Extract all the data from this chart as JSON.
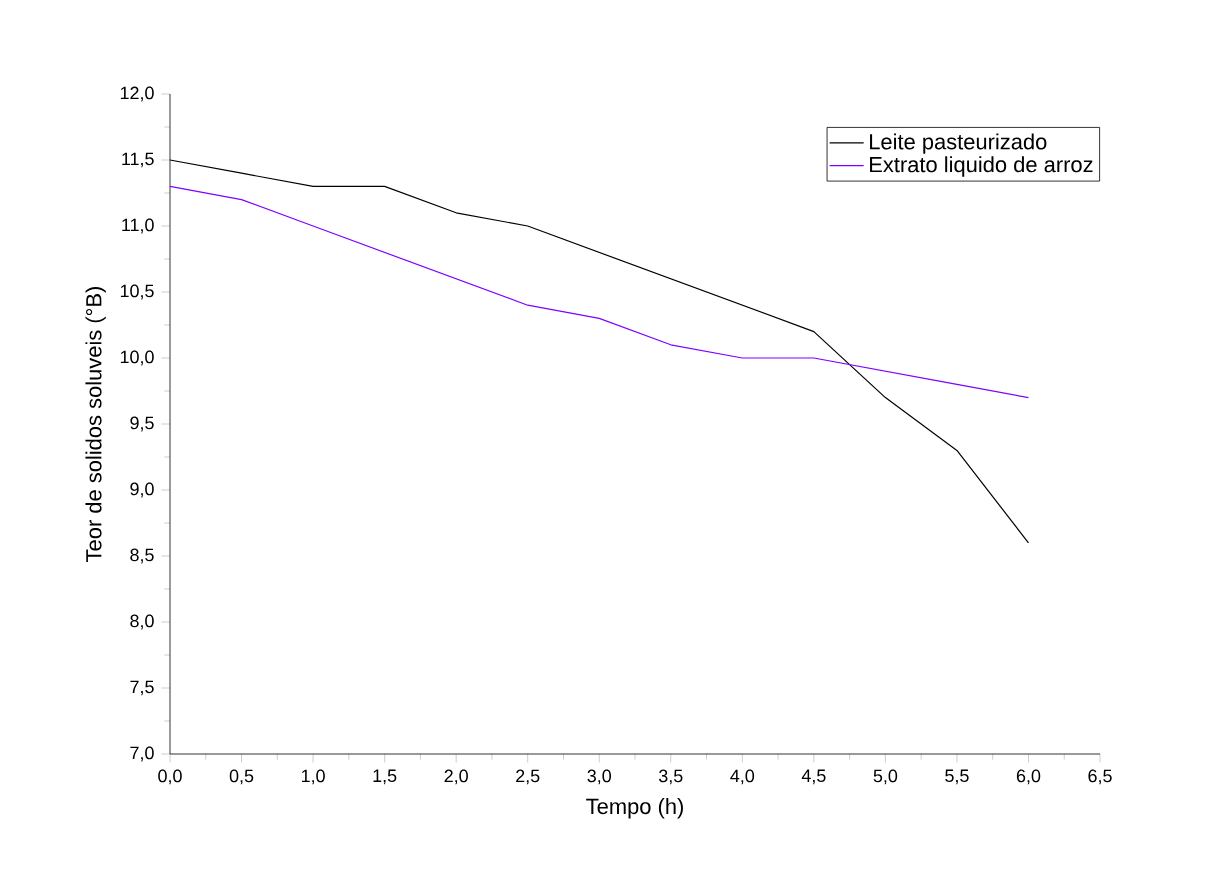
{
  "chart_data": {
    "type": "line",
    "xlabel": "Tempo (h)",
    "ylabel": "Teor de solidos soluveis (°B)",
    "x": [
      0,
      0.5,
      1,
      1.5,
      2,
      2.5,
      3,
      3.5,
      4,
      4.5,
      5,
      5.5,
      6
    ],
    "series": [
      {
        "name": "Leite pasteurizado",
        "color": "#000000",
        "values": [
          11.5,
          11.4,
          11.3,
          11.3,
          11.1,
          11.0,
          10.8,
          10.6,
          10.4,
          10.2,
          9.7,
          9.3,
          8.6
        ]
      },
      {
        "name": "Extrato liquido de arroz",
        "color": "#8000ff",
        "values": [
          11.3,
          11.2,
          11.0,
          10.8,
          10.6,
          10.4,
          10.3,
          10.1,
          10.0,
          10.0,
          9.9,
          9.8,
          9.7
        ]
      }
    ],
    "xlim": [
      0,
      6.5
    ],
    "xticks": [
      {
        "value": 0,
        "label": "0,0"
      },
      {
        "value": 0.5,
        "label": "0,5"
      },
      {
        "value": 1,
        "label": "1,0"
      },
      {
        "value": 1.5,
        "label": "1,5"
      },
      {
        "value": 2,
        "label": "2,0"
      },
      {
        "value": 2.5,
        "label": "2,5"
      },
      {
        "value": 3,
        "label": "3,0"
      },
      {
        "value": 3.5,
        "label": "3,5"
      },
      {
        "value": 4,
        "label": "4,0"
      },
      {
        "value": 4.5,
        "label": "4,5"
      },
      {
        "value": 5,
        "label": "5,0"
      },
      {
        "value": 5.5,
        "label": "5,5"
      },
      {
        "value": 6,
        "label": "6,0"
      },
      {
        "value": 6.5,
        "label": "6,5"
      }
    ],
    "ylim": [
      7,
      12
    ],
    "yticks": [
      {
        "value": 7,
        "label": "7,0"
      },
      {
        "value": 7.5,
        "label": "7,5"
      },
      {
        "value": 8,
        "label": "8,0"
      },
      {
        "value": 8.5,
        "label": "8,5"
      },
      {
        "value": 9,
        "label": "9,0"
      },
      {
        "value": 9.5,
        "label": "9,5"
      },
      {
        "value": 10,
        "label": "10,0"
      },
      {
        "value": 10.5,
        "label": "10,5"
      },
      {
        "value": 11,
        "label": "11,0"
      },
      {
        "value": 11.5,
        "label": "11,5"
      },
      {
        "value": 12,
        "label": "12,0"
      }
    ],
    "legend": "top right",
    "marker": "none",
    "line_style": "solid",
    "grid": false
  }
}
